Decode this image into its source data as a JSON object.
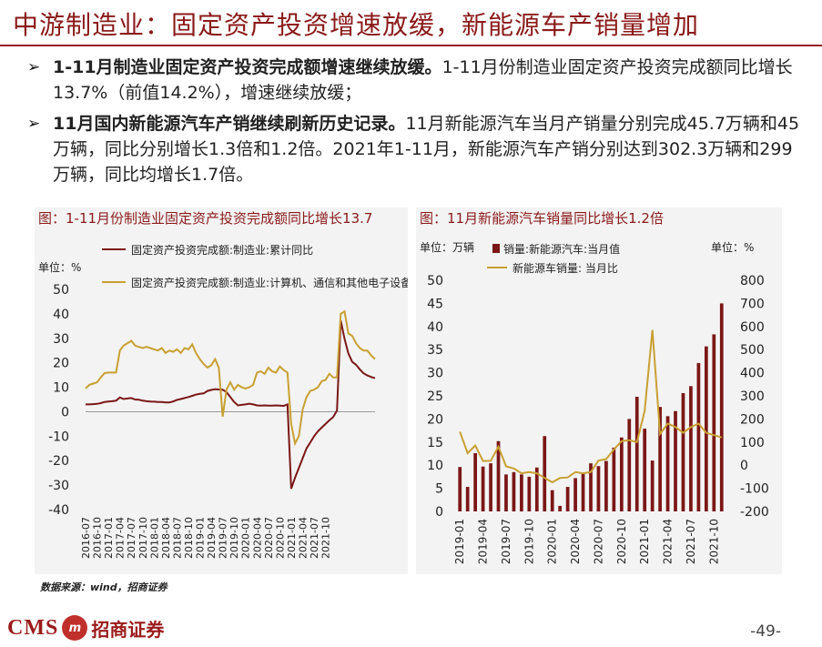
{
  "slide": {
    "title": "中游制造业：固定资产投资增速放缓，新能源车产销量增加",
    "bullets": [
      {
        "bold": "1-11月制造业固定资产投资完成额增速继续放缓。",
        "text": "1-11月份制造业固定资产投资完成额同比增长13.7%（前值14.2%），增速继续放缓；"
      },
      {
        "bold": "11月国内新能源汽车产销继续刷新历史记录。",
        "text": "11月新能源汽车当月产销量分别完成45.7万辆和45万辆，同比分别增长1.3倍和1.2倍。2021年1-11月，新能源汽车产销分别达到302.3万辆和299万辆，同比均增长1.7倍。"
      }
    ],
    "source": "数据来源：wind，招商证券",
    "page_number": "-49-",
    "logo_text": "CMS",
    "logo_badge": "m",
    "brand_name": "招商证券",
    "colors": {
      "brand": "#9b1b1b",
      "gold": "#c8a032",
      "panel_bg": "#f3f3f3"
    }
  },
  "chart_data": [
    {
      "type": "line",
      "title": "图：1-11月份制造业固定资产投资完成额同比增长13.7",
      "yunit": "单位：%",
      "ylim": [
        -40,
        50
      ],
      "yticks": [
        50,
        40,
        30,
        20,
        10,
        0,
        -10,
        -20,
        -30,
        -40
      ],
      "xticklabels": [
        "2016-07",
        "2016-10",
        "2017-01",
        "2017-04",
        "2017-07",
        "2017-10",
        "2018-01",
        "2018-04",
        "2018-07",
        "2018-10",
        "2019-01",
        "2019-04",
        "2019-07",
        "2019-10",
        "2020-01",
        "2020-04",
        "2020-07",
        "2020-10",
        "2021-01",
        "2021-04",
        "2021-07",
        "2021-10"
      ],
      "x_start": "2016-07",
      "grid": false,
      "legend": "top",
      "series": [
        {
          "name": "固定资产投资完成额:制造业:累计同比",
          "color": "#7b1616",
          "values": [
            3.0,
            3.0,
            3.1,
            3.2,
            3.5,
            4.0,
            4.2,
            4.3,
            4.5,
            5.8,
            5.2,
            5.4,
            5.6,
            5.0,
            4.9,
            4.5,
            4.3,
            4.2,
            4.1,
            4.0,
            4.0,
            3.8,
            3.8,
            4.2,
            4.8,
            5.2,
            5.6,
            6.0,
            6.5,
            7.0,
            7.3,
            7.5,
            8.5,
            8.9,
            9.2,
            9.1,
            9.0,
            8.0,
            6.0,
            4.0,
            2.6,
            2.8,
            3.0,
            3.3,
            3.0,
            2.6,
            2.5,
            2.6,
            2.5,
            2.5,
            2.6,
            2.5,
            2.4,
            3.0,
            -31.5,
            -27.0,
            -23.0,
            -19.0,
            -15.0,
            -12.5,
            -10.0,
            -8.0,
            -6.5,
            -5.0,
            -3.5,
            -2.2,
            0.5,
            37.3,
            29.8,
            23.8,
            20.4,
            19.2,
            17.3,
            15.7,
            14.8,
            14.2,
            13.7
          ]
        },
        {
          "name": "固定资产投资完成额:制造业:计算机、通信和其他电子设备制造业:累计同比",
          "color": "#c8a032",
          "values": [
            9.5,
            11.0,
            11.5,
            12.0,
            14.0,
            15.8,
            16.0,
            16.0,
            16.0,
            25.0,
            27.0,
            28.0,
            29.0,
            27.0,
            26.5,
            26.0,
            26.5,
            26.0,
            25.5,
            25.0,
            26.0,
            24.0,
            25.0,
            24.5,
            25.5,
            24.0,
            26.0,
            25.5,
            27.5,
            24.0,
            21.5,
            19.5,
            18.0,
            19.0,
            21.5,
            18.0,
            -2.0,
            9.0,
            12.0,
            9.0,
            11.0,
            10.0,
            9.5,
            10.0,
            11.0,
            16.0,
            16.5,
            15.5,
            18.0,
            16.5,
            16.0,
            18.5,
            17.0,
            16.0,
            -5.0,
            -13.0,
            -10.0,
            1.0,
            6.0,
            8.5,
            9.0,
            10.0,
            12.5,
            13.0,
            15.5,
            14.0,
            14.0,
            40.0,
            41.0,
            32.0,
            31.0,
            28.0,
            26.0,
            25.0,
            25.0,
            23.0,
            21.5
          ]
        }
      ]
    },
    {
      "type": "bar",
      "title": "图：11月新能源汽车销量同比增长1.2倍",
      "y_left_unit": "单位：万辆",
      "y_right_unit": "单位：%",
      "ylim_left": [
        0,
        50
      ],
      "ylim_right": [
        -200,
        800
      ],
      "yticks_left": [
        50,
        45,
        40,
        35,
        30,
        25,
        20,
        15,
        10,
        5,
        0
      ],
      "yticks_right": [
        800,
        700,
        600,
        500,
        400,
        300,
        200,
        100,
        0,
        -100,
        -200
      ],
      "xticklabels": [
        "2019-01",
        "2019-04",
        "2019-07",
        "2019-10",
        "2020-01",
        "2020-04",
        "2020-07",
        "2020-10",
        "2021-01",
        "2021-04",
        "2021-07",
        "2021-10"
      ],
      "x_start": "2019-01",
      "legend": "top",
      "series": [
        {
          "name": "销量:新能源汽车:当月值",
          "type": "bar",
          "axis": "left",
          "color": "#7b1616",
          "values": [
            9.6,
            5.3,
            12.6,
            9.7,
            10.4,
            15.2,
            8.0,
            8.5,
            8.0,
            7.5,
            9.5,
            16.3,
            4.6,
            1.2,
            5.3,
            7.2,
            8.2,
            10.4,
            9.8,
            10.9,
            13.8,
            16.0,
            20.0,
            24.8,
            17.9,
            11.0,
            22.6,
            20.6,
            21.7,
            25.6,
            27.1,
            32.1,
            35.7,
            38.3,
            45.0
          ]
        },
        {
          "name": "新能源车销量: 当月比",
          "type": "line",
          "axis": "right",
          "color": "#c8a032",
          "values": [
            145,
            52,
            85,
            18,
            19,
            80,
            -5,
            -14,
            -35,
            -30,
            -35,
            -55,
            -74,
            -55,
            -53,
            -30,
            -35,
            -30,
            20,
            26,
            68,
            104,
            108,
            100,
            235,
            585,
            135,
            180,
            165,
            140,
            165,
            180,
            140,
            130,
            120
          ]
        }
      ]
    }
  ]
}
